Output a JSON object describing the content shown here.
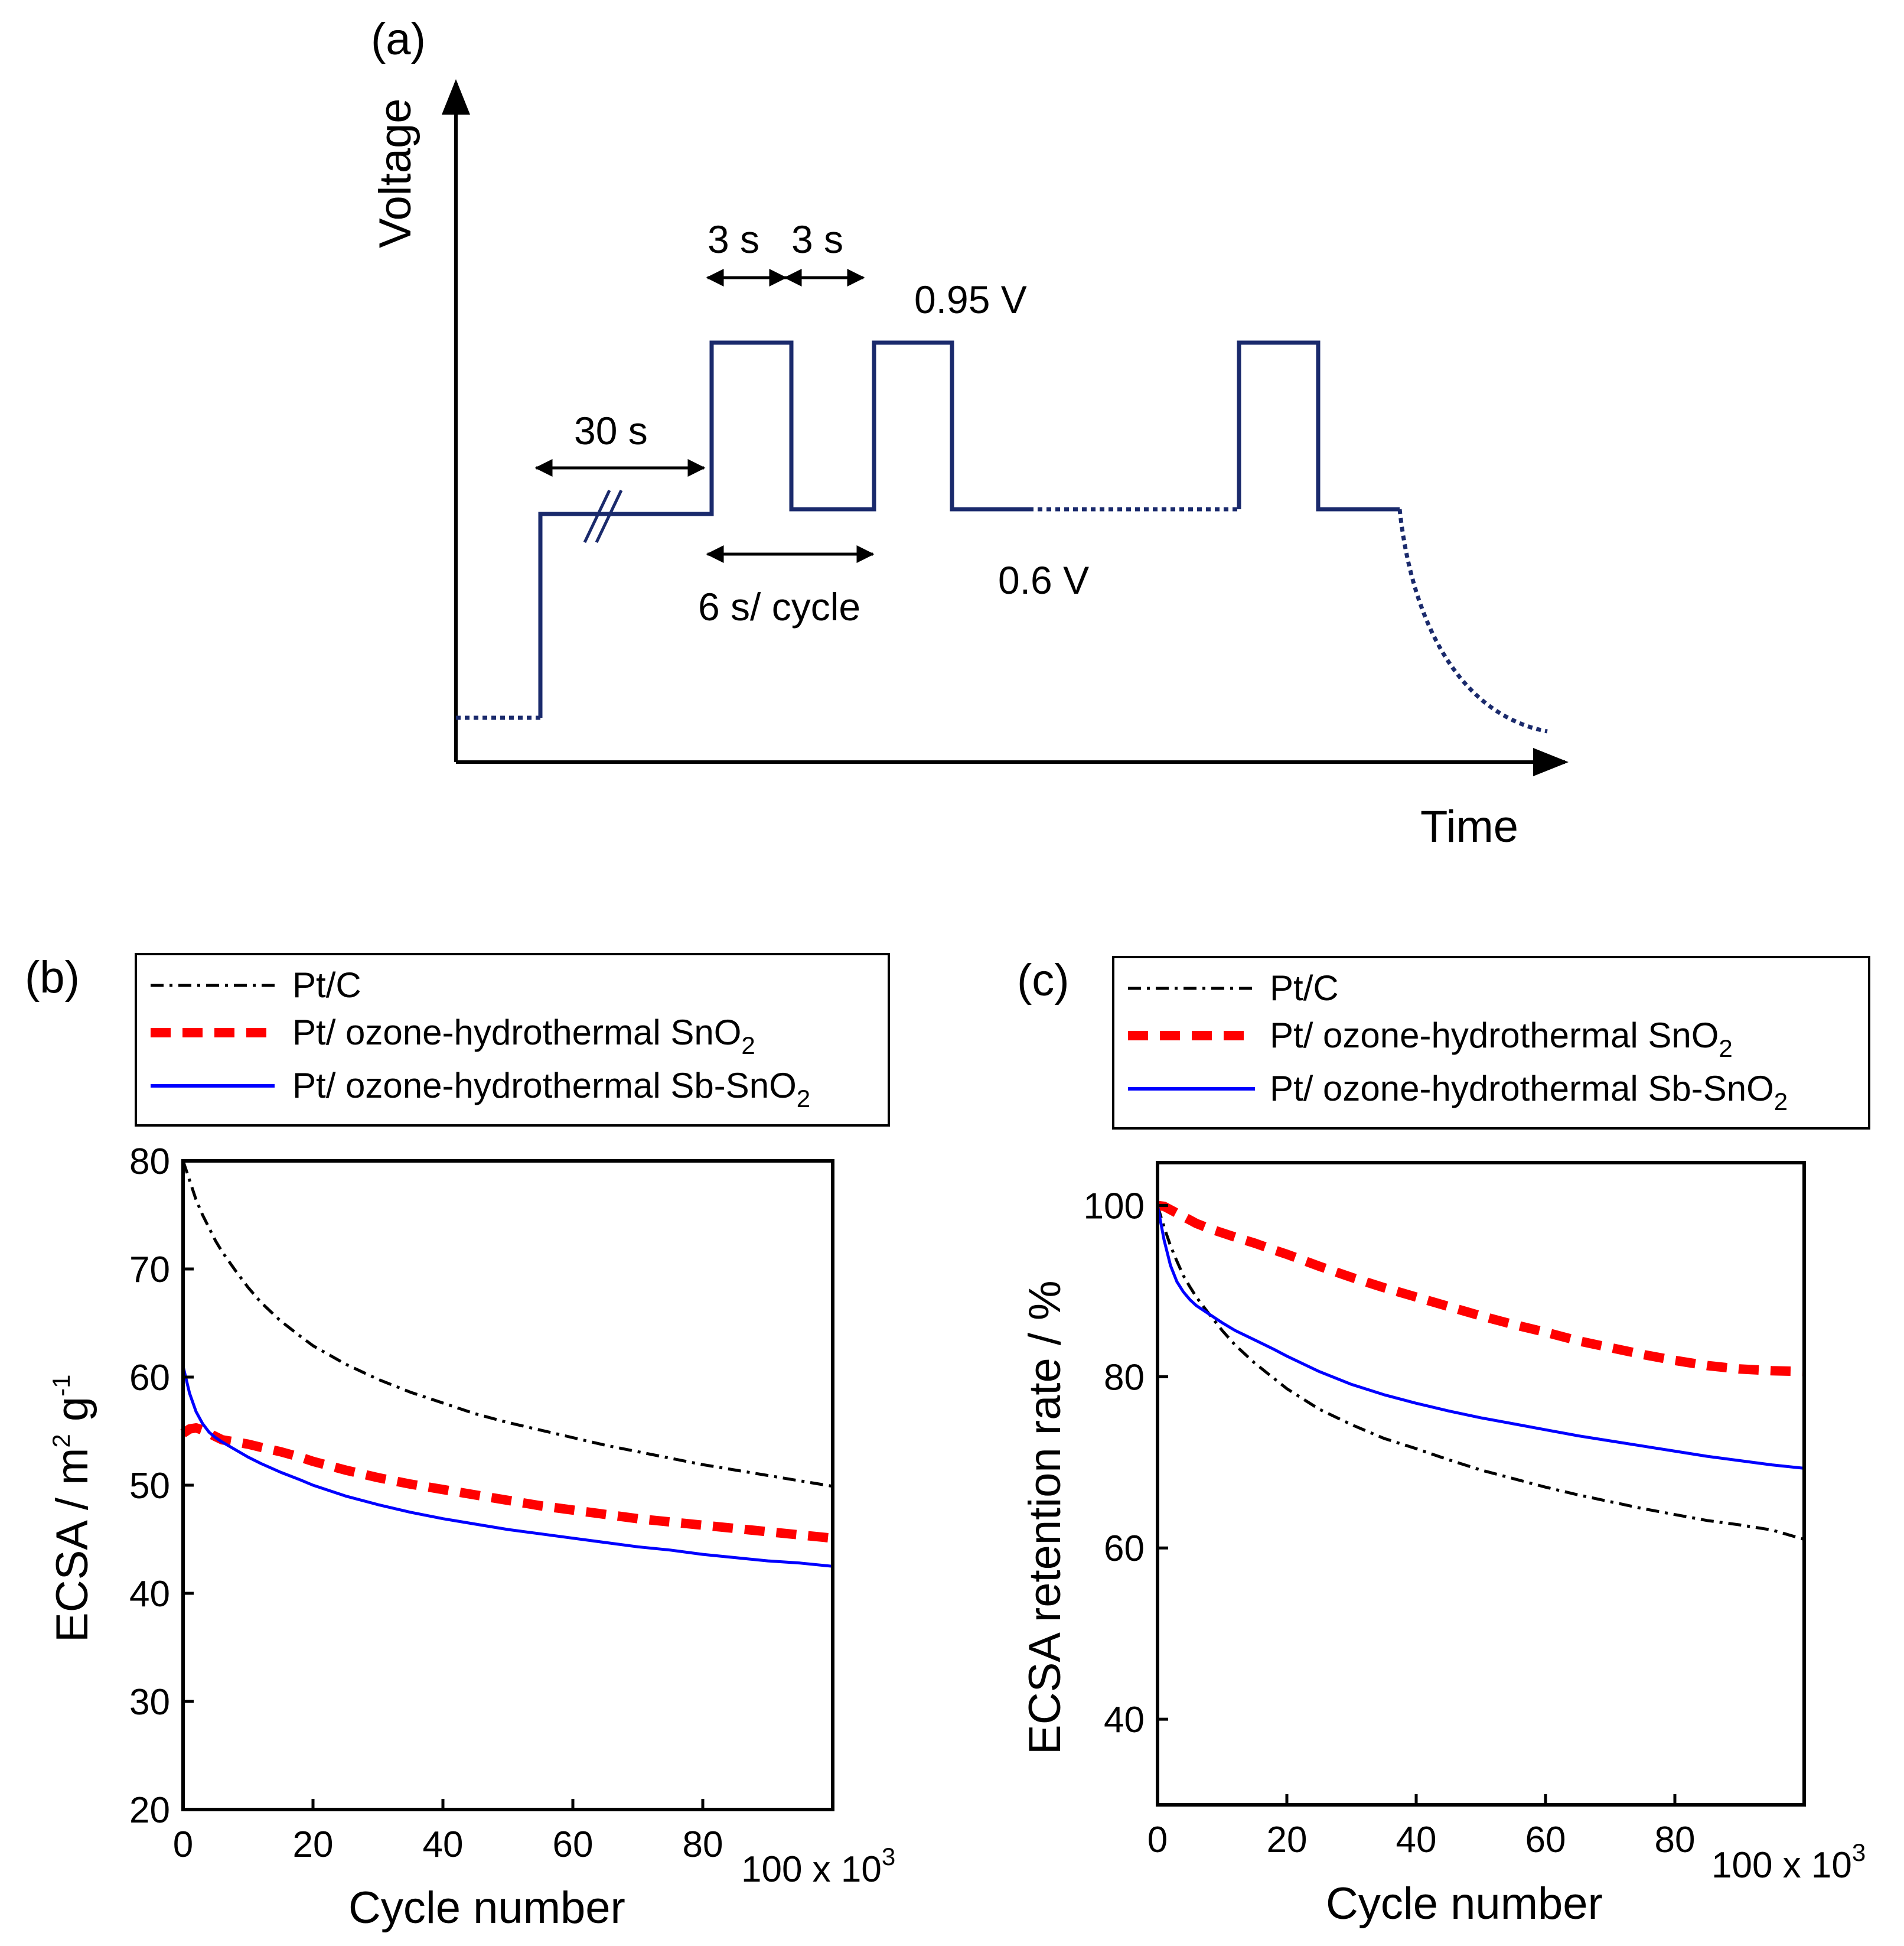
{
  "colors": {
    "axis": "#000000",
    "protocol_line": "#1a2a6c",
    "pt_c": "#000000",
    "snO2": "#ff0000",
    "sbsnO2": "#0000ff"
  },
  "panel_a": {
    "label": "(a)",
    "y_axis": "Voltage",
    "x_axis": "Time",
    "t_hold": "30 s",
    "t_high": "3 s",
    "t_low": "3 s",
    "v_high": "0.95 V",
    "v_low": "0.6 V",
    "cycle": "6 s/ cycle"
  },
  "legend": {
    "ptc": "Pt/C",
    "sno2": "Pt/ ozone-hydrothermal SnO",
    "sbsno2": "Pt/ ozone-hydrothermal Sb-SnO",
    "sub": "2"
  },
  "chart_data": [
    {
      "panel": "(b)",
      "type": "line",
      "title": "",
      "xlabel": "Cycle number",
      "x_multiplier": "100 x 10",
      "x_multiplier_exp": "3",
      "ylabel_main": "ECSA / m",
      "ylabel_exp1": "2",
      "ylabel_g": " g",
      "ylabel_exp2": "-1",
      "xlim": [
        0,
        100
      ],
      "ylim": [
        20,
        80
      ],
      "xticks": [
        "0",
        "20",
        "40",
        "60",
        "80"
      ],
      "yticks": [
        "20",
        "30",
        "40",
        "50",
        "60",
        "70",
        "80"
      ],
      "x": [
        0,
        1,
        2,
        3,
        4,
        5,
        6,
        8,
        10,
        12,
        15,
        18,
        20,
        25,
        30,
        35,
        40,
        45,
        50,
        55,
        60,
        65,
        70,
        75,
        80,
        85,
        90,
        95,
        100
      ],
      "series": [
        {
          "name": "Pt/C",
          "style": "dashdot",
          "values": [
            80,
            78.2,
            76.4,
            75,
            73.8,
            72.6,
            71.6,
            69.9,
            68.3,
            66.9,
            65.2,
            63.8,
            62.9,
            61.2,
            59.8,
            58.6,
            57.6,
            56.6,
            55.8,
            55.1,
            54.4,
            53.7,
            53.1,
            52.5,
            51.9,
            51.4,
            50.9,
            50.4,
            49.9
          ]
        },
        {
          "name": "Pt/ ozone-hydrothermal SnO2",
          "style": "dashed",
          "values": [
            54.8,
            55.2,
            55.3,
            55.1,
            54.8,
            54.5,
            54.2,
            54,
            53.8,
            53.5,
            53.1,
            52.6,
            52.2,
            51.4,
            50.7,
            50.1,
            49.6,
            49.1,
            48.6,
            48.1,
            47.7,
            47.3,
            46.9,
            46.6,
            46.3,
            46,
            45.7,
            45.4,
            45.1
          ]
        },
        {
          "name": "Pt/ ozone-hydrothermal Sb-SnO2",
          "style": "solid",
          "values": [
            61,
            58.5,
            56.8,
            55.7,
            54.9,
            54.4,
            54,
            53.3,
            52.6,
            52,
            51.2,
            50.5,
            50,
            49,
            48.2,
            47.5,
            46.9,
            46.4,
            45.9,
            45.5,
            45.1,
            44.7,
            44.3,
            44,
            43.6,
            43.3,
            43,
            42.8,
            42.5
          ]
        }
      ]
    },
    {
      "panel": "(c)",
      "type": "line",
      "title": "",
      "xlabel": "Cycle number",
      "x_multiplier": "100 x 10",
      "x_multiplier_exp": "3",
      "ylabel": "ECSA retention rate / %",
      "xlim": [
        0,
        100
      ],
      "ylim": [
        30,
        105
      ],
      "xticks": [
        "0",
        "20",
        "40",
        "60",
        "80"
      ],
      "yticks": [
        "40",
        "60",
        "80",
        "100"
      ],
      "x": [
        0,
        1,
        2,
        3,
        4,
        5,
        6,
        8,
        10,
        12,
        15,
        18,
        20,
        25,
        30,
        35,
        40,
        45,
        50,
        55,
        60,
        65,
        70,
        75,
        80,
        85,
        90,
        95,
        100
      ],
      "series": [
        {
          "name": "Pt/C",
          "style": "dashdot",
          "values": [
            100,
            97.5,
            95.3,
            93.5,
            91.8,
            90.5,
            89.3,
            87.3,
            85.4,
            83.7,
            81.6,
            79.8,
            78.6,
            76.2,
            74.4,
            72.8,
            71.6,
            70.3,
            69.1,
            68.1,
            67.1,
            66.2,
            65.4,
            64.6,
            63.9,
            63.2,
            62.7,
            62.1,
            61
          ]
        },
        {
          "name": "Pt/ ozone-hydrothermal SnO2",
          "style": "dashed",
          "values": [
            100,
            99.9,
            99.5,
            99.1,
            98.7,
            98.3,
            97.9,
            97.3,
            96.8,
            96.3,
            95.6,
            94.8,
            94.3,
            92.9,
            91.6,
            90.4,
            89.3,
            88.2,
            87.1,
            86.1,
            85.2,
            84.2,
            83.4,
            82.6,
            81.9,
            81.3,
            80.9,
            80.7,
            80.6
          ]
        },
        {
          "name": "Pt/ ozone-hydrothermal Sb-SnO2",
          "style": "solid",
          "values": [
            100,
            96,
            93,
            91.1,
            89.9,
            89,
            88.3,
            87.3,
            86.3,
            85.4,
            84.3,
            83.2,
            82.4,
            80.6,
            79.1,
            77.9,
            76.9,
            76,
            75.2,
            74.5,
            73.8,
            73.1,
            72.5,
            71.9,
            71.3,
            70.7,
            70.2,
            69.7,
            69.3
          ]
        }
      ]
    }
  ]
}
